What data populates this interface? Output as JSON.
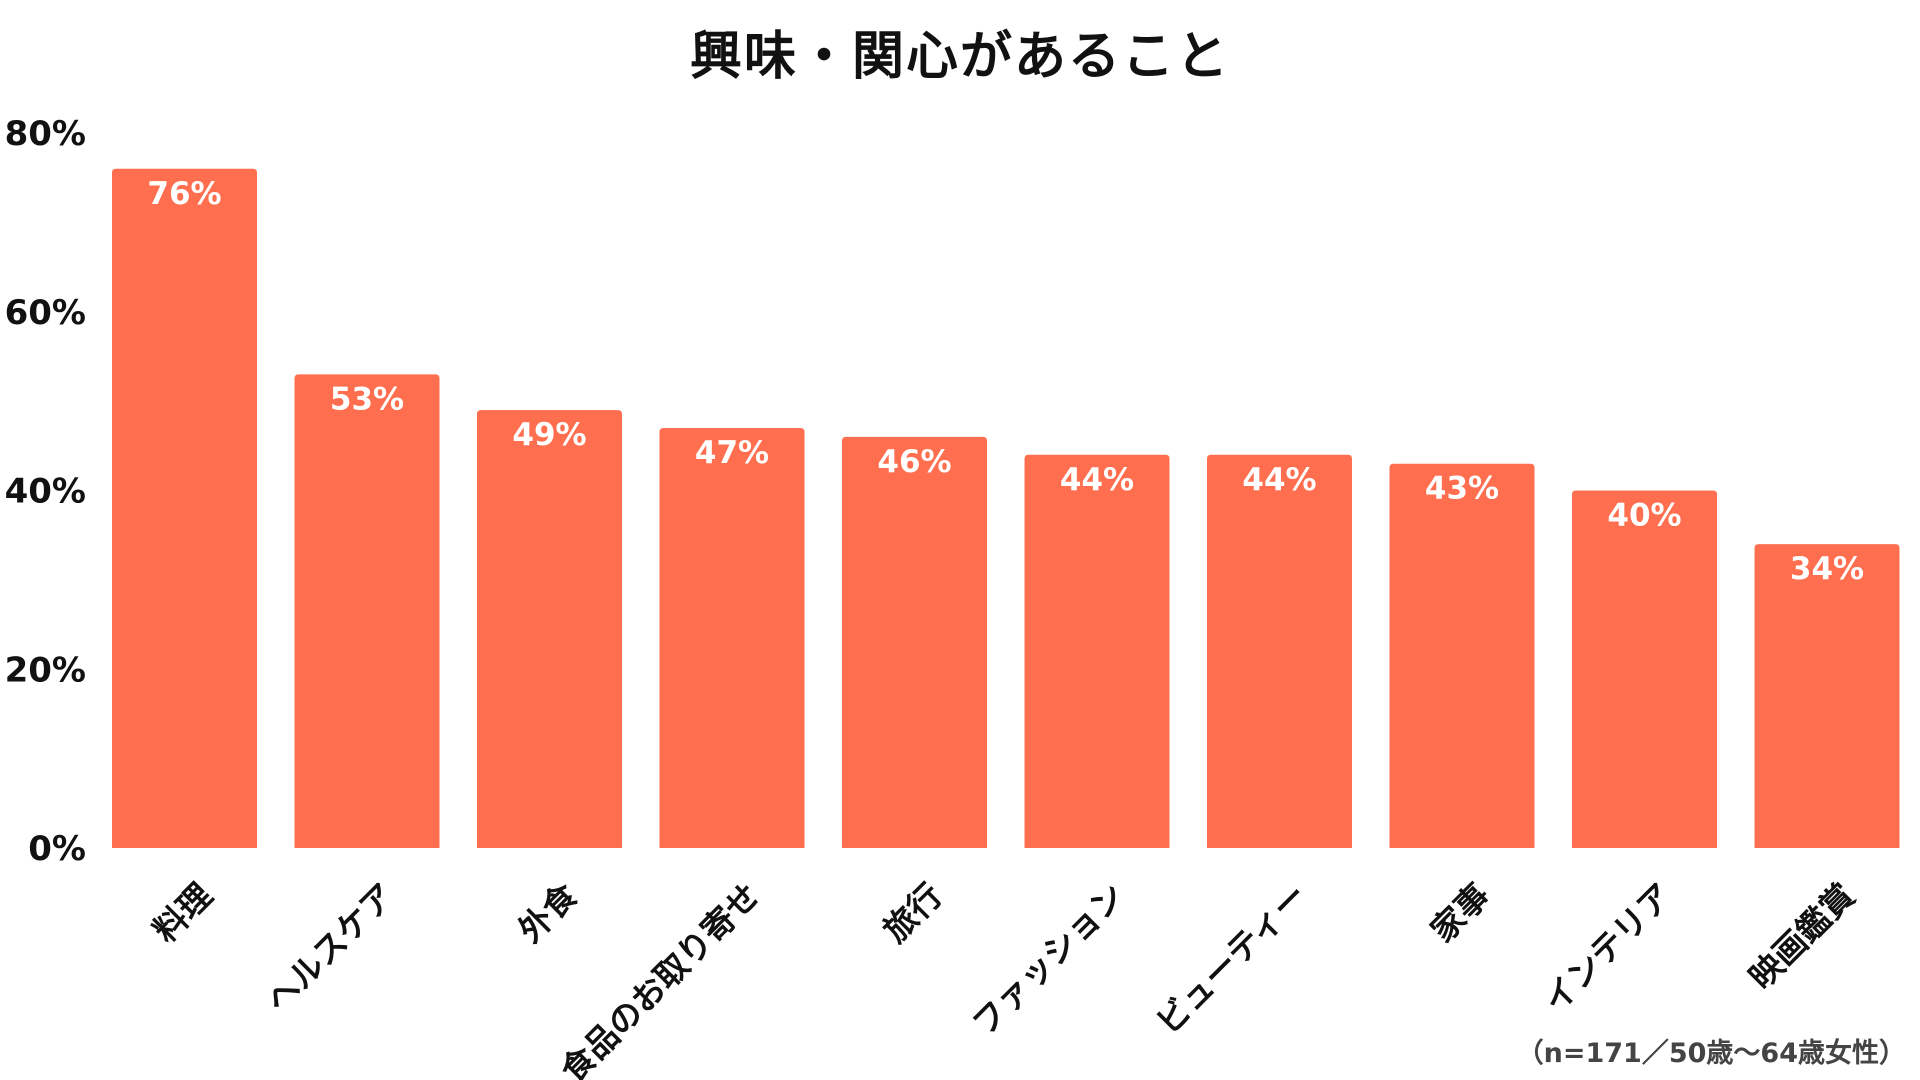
{
  "chart_data": {
    "type": "bar",
    "title": "興味・関心があること",
    "categories": [
      "料理",
      "ヘルスケア",
      "外食",
      "食品のお取り寄せ",
      "旅行",
      "ファッション",
      "ビューティー",
      "家事",
      "インテリア",
      "映画鑑賞"
    ],
    "values": [
      76,
      53,
      49,
      47,
      46,
      44,
      44,
      43,
      40,
      34
    ],
    "value_suffix": "%",
    "ylim": [
      0,
      80
    ],
    "yticks": [
      0,
      20,
      40,
      60,
      80
    ],
    "ytick_labels": [
      "0%",
      "20%",
      "40%",
      "60%",
      "80%"
    ],
    "grid": false,
    "legend": "none",
    "bar_color": "#FF6F4F",
    "note": "（n=171／50歳〜64歳女性）"
  }
}
